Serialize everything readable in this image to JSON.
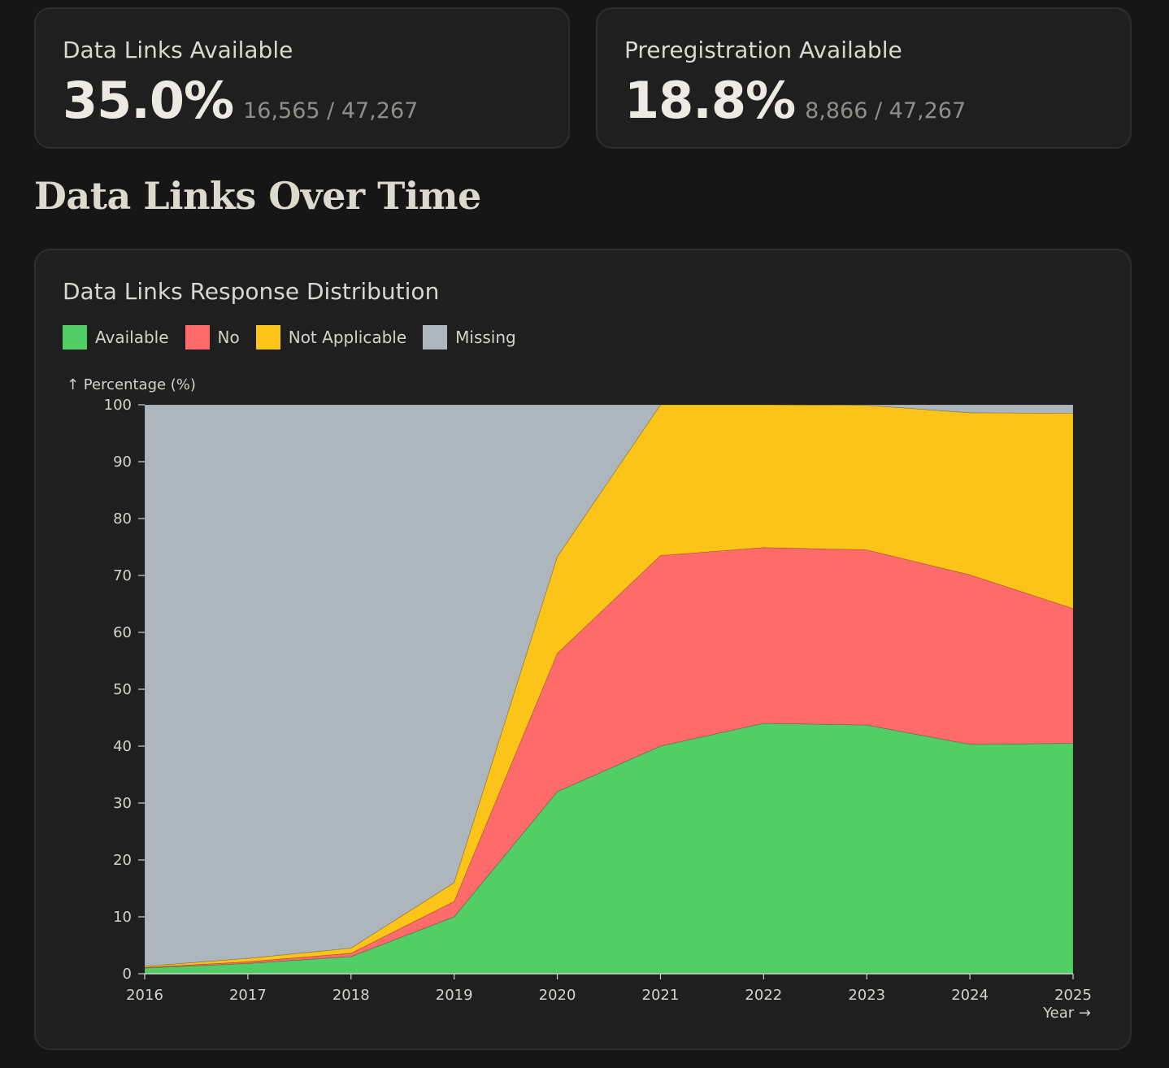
{
  "stats": [
    {
      "label": "Data Links Available",
      "value": "35.0%",
      "detail": "16,565 / 47,267"
    },
    {
      "label": "Preregistration Available",
      "value": "18.8%",
      "detail": "8,866 / 47,267"
    }
  ],
  "section_title": "Data Links Over Time",
  "chart_data": {
    "type": "area",
    "stacked": true,
    "title": "Data Links Response Distribution",
    "xlabel": "Year →",
    "ylabel": "↑ Percentage (%)",
    "x": [
      2016,
      2017,
      2018,
      2019,
      2020,
      2021,
      2022,
      2023,
      2024,
      2025
    ],
    "xlim": [
      2016,
      2025
    ],
    "ylim": [
      0,
      100
    ],
    "yticks": [
      0,
      10,
      20,
      30,
      40,
      50,
      60,
      70,
      80,
      90,
      100
    ],
    "legend_position": "top-left",
    "grid": false,
    "series": [
      {
        "name": "Available",
        "color": "#51cf66",
        "values": [
          1.0,
          1.8,
          3.0,
          10.0,
          32.0,
          40.0,
          44.0,
          43.7,
          40.3,
          40.5
        ]
      },
      {
        "name": "No",
        "color": "#ff6b6b",
        "values": [
          0.1,
          0.3,
          0.6,
          2.7,
          24.3,
          33.5,
          30.9,
          30.8,
          29.8,
          23.7
        ]
      },
      {
        "name": "Not Applicable",
        "color": "#fcc419",
        "values": [
          0.2,
          0.6,
          0.9,
          3.3,
          17.0,
          26.5,
          25.1,
          25.4,
          28.5,
          34.3
        ]
      },
      {
        "name": "Missing",
        "color": "#adb5bd",
        "values": [
          98.7,
          97.3,
          95.5,
          84.0,
          26.7,
          0.0,
          0.0,
          0.1,
          1.4,
          1.5
        ]
      }
    ]
  }
}
